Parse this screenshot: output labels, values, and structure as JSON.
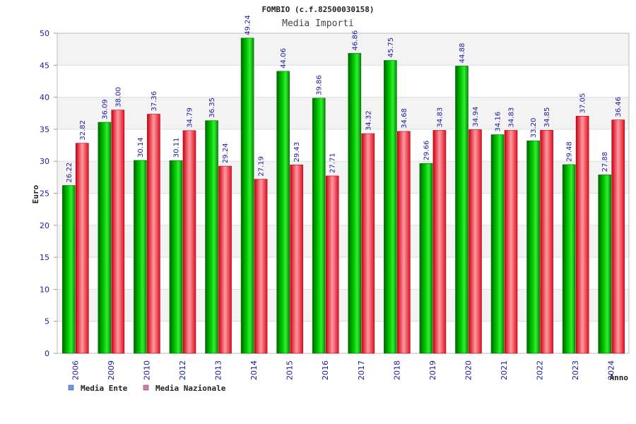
{
  "chart_data": {
    "type": "bar",
    "title": "FOMBIO (c.f.82500030158)",
    "subtitle": "Media Importi",
    "xlabel": "Anno",
    "ylabel": "Euro",
    "ylim": [
      0,
      50
    ],
    "yticks": [
      0,
      5,
      10,
      15,
      20,
      25,
      30,
      35,
      40,
      45,
      50
    ],
    "grid": true,
    "legend_position": "bottom-left",
    "categories": [
      "2006",
      "2009",
      "2010",
      "2012",
      "2013",
      "2014",
      "2015",
      "2016",
      "2017",
      "2018",
      "2019",
      "2020",
      "2021",
      "2022",
      "2023",
      "2024"
    ],
    "series": [
      {
        "name": "Media Ente",
        "color": "#00bb00",
        "legend_color": "#6699ee",
        "values": [
          26.22,
          36.09,
          30.14,
          30.11,
          36.35,
          49.24,
          44.06,
          39.86,
          46.86,
          45.75,
          29.66,
          44.88,
          34.16,
          33.2,
          29.48,
          27.88
        ],
        "labels": [
          "26.22",
          "36.09",
          "30.14",
          "30.11",
          "36.35",
          "49.24",
          "44.06",
          "39.86",
          "46.86",
          "45.75",
          "29.66",
          "44.88",
          "34.16",
          "33.20",
          "29.48",
          "27.88"
        ]
      },
      {
        "name": "Media Nazionale",
        "color": "#ee2233",
        "legend_color": "#dd77aa",
        "values": [
          32.82,
          38.0,
          37.36,
          34.79,
          29.24,
          27.19,
          29.43,
          27.71,
          34.32,
          34.68,
          34.83,
          34.94,
          34.83,
          34.85,
          37.05,
          36.46
        ],
        "labels": [
          "32.82",
          "38.00",
          "37.36",
          "34.79",
          "29.24",
          "27.19",
          "29.43",
          "27.71",
          "34.32",
          "34.68",
          "34.83",
          "34.94",
          "34.83",
          "34.85",
          "37.05",
          "36.46"
        ]
      }
    ]
  }
}
